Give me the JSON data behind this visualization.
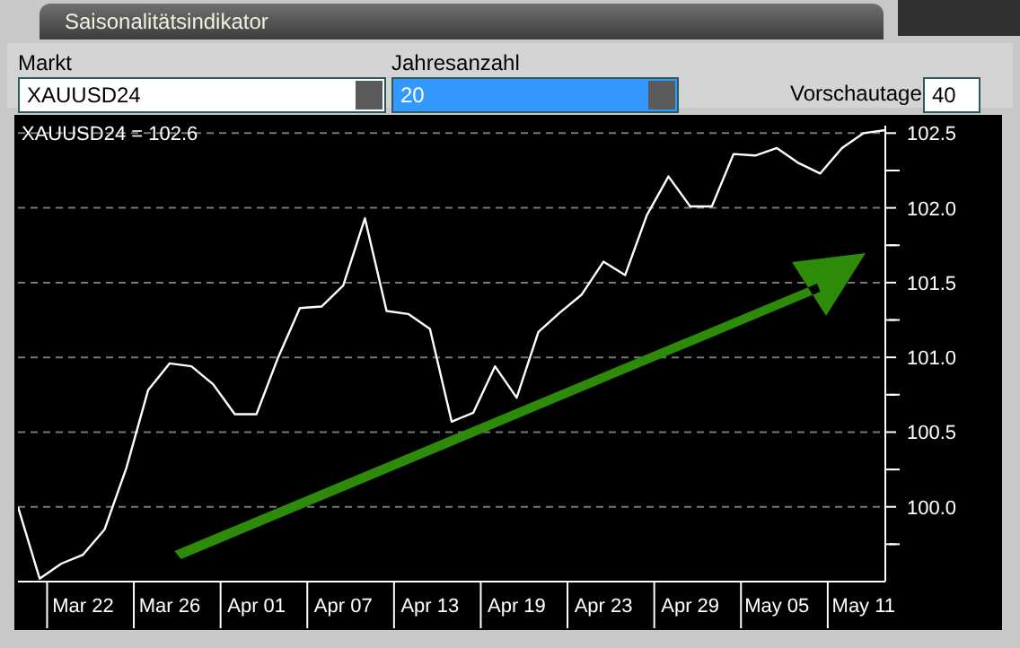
{
  "chart_data": {
    "type": "line",
    "title": "Saisonalitätsindikator",
    "annotations": [
      "Markt",
      "XAUUSD24",
      "Jahresanzahl",
      "20",
      "Vorschautage",
      "40",
      "XAUUSD24 = 102.6"
    ],
    "categories": [
      null,
      null,
      null,
      "Mar 22",
      null,
      null,
      null,
      "Mar 26",
      null,
      null,
      null,
      "Apr 01",
      null,
      null,
      null,
      "Apr 07",
      null,
      null,
      null,
      "Apr 13",
      null,
      null,
      null,
      "Apr 19",
      null,
      null,
      null,
      "Apr 23",
      null,
      null,
      null,
      "Apr 29",
      null,
      null,
      null,
      "May 05",
      null,
      null,
      null,
      "May 11",
      null
    ],
    "series": [
      {
        "color": "#ffffff",
        "values": [
          100.0,
          99.52,
          99.62,
          99.68,
          99.85,
          100.26,
          100.78,
          100.96,
          100.94,
          100.82,
          100.62,
          100.62,
          101.0,
          101.33,
          101.34,
          101.48,
          101.93,
          101.31,
          101.29,
          101.19,
          100.57,
          100.63,
          100.94,
          100.73,
          101.17,
          101.3,
          101.42,
          101.64,
          101.55,
          101.95,
          102.21,
          102.01,
          102.01,
          102.36,
          102.35,
          102.4,
          102.3,
          102.23,
          102.4,
          102.5,
          102.52
        ]
      }
    ],
    "ylim": [
      99.5,
      102.55
    ],
    "yticks": [
      {
        "value": 99.75,
        "label": null
      },
      {
        "value": 100,
        "label": "100.0"
      },
      {
        "value": 100.25,
        "label": null
      },
      {
        "value": 100.5,
        "label": "100.5"
      },
      {
        "value": 100.75,
        "label": null
      },
      {
        "value": 101,
        "label": "101.0"
      },
      {
        "value": 101.25,
        "label": null
      },
      {
        "value": 101.5,
        "label": "101.5"
      },
      {
        "value": 101.75,
        "label": null
      },
      {
        "value": 102,
        "label": "102.0"
      },
      {
        "value": 102.25,
        "label": null
      },
      {
        "value": 102.5,
        "label": "102.5"
      }
    ],
    "grid": "y"
  }
}
